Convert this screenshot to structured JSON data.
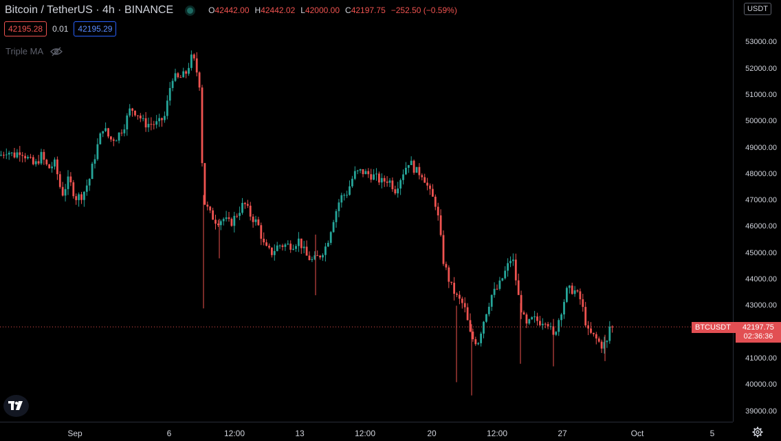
{
  "header": {
    "symbol_title": "Bitcoin / TetherUS · 4h · BINANCE",
    "ohlc": {
      "o_label": "O",
      "o_value": "42442.00",
      "h_label": "H",
      "h_value": "42442.02",
      "l_label": "L",
      "l_value": "42000.00",
      "c_label": "C",
      "c_value": "42197.75",
      "change": "−252.50 (−0.59%)"
    }
  },
  "quote": {
    "bid": "42195.28",
    "spread": "0.01",
    "ask": "42195.29"
  },
  "indicator": {
    "name": "Triple MA",
    "icon": "eye-crossed-icon"
  },
  "currency": "USDT",
  "last_price_label": {
    "symbol": "BTCUSDT",
    "price": "42197.75",
    "countdown": "02:36:36"
  },
  "colors": {
    "up": "#26a69a",
    "down": "#ef5350",
    "background": "#000000",
    "label": "#e24f53"
  },
  "chart_data": {
    "type": "candlestick",
    "price_axis": [
      "53000.00",
      "52000.00",
      "51000.00",
      "50000.00",
      "49000.00",
      "48000.00",
      "47000.00",
      "46000.00",
      "45000.00",
      "44000.00",
      "43000.00",
      "42000.00",
      "41000.00",
      "40000.00",
      "39000.00"
    ],
    "time_axis": [
      "Sep",
      "6",
      "12:00",
      "13",
      "12:00",
      "20",
      "12:00",
      "27",
      "Oct",
      "5"
    ],
    "last_price": 42197.75,
    "ylim": [
      38600,
      54600
    ],
    "anchors": [
      [
        0,
        48700
      ],
      [
        10,
        48900
      ],
      [
        20,
        48700
      ],
      [
        30,
        48900
      ],
      [
        40,
        48600
      ],
      [
        50,
        48300
      ],
      [
        60,
        48700
      ],
      [
        70,
        48200
      ],
      [
        80,
        48400
      ],
      [
        90,
        47200
      ],
      [
        100,
        47800
      ],
      [
        110,
        47100
      ],
      [
        120,
        47200
      ],
      [
        130,
        47800
      ],
      [
        140,
        48900
      ],
      [
        150,
        49800
      ],
      [
        160,
        49300
      ],
      [
        170,
        49400
      ],
      [
        180,
        49800
      ],
      [
        190,
        50500
      ],
      [
        200,
        50300
      ],
      [
        210,
        49900
      ],
      [
        220,
        49900
      ],
      [
        230,
        49900
      ],
      [
        240,
        50200
      ],
      [
        250,
        51700
      ],
      [
        260,
        51600
      ],
      [
        270,
        51800
      ],
      [
        280,
        52500
      ],
      [
        290,
        51500
      ],
      [
        296,
        47000
      ],
      [
        305,
        46500
      ],
      [
        315,
        46200
      ],
      [
        325,
        46300
      ],
      [
        335,
        46100
      ],
      [
        345,
        46500
      ],
      [
        355,
        46900
      ],
      [
        365,
        46400
      ],
      [
        375,
        46100
      ],
      [
        385,
        45200
      ],
      [
        395,
        45000
      ],
      [
        405,
        45300
      ],
      [
        415,
        45300
      ],
      [
        425,
        45300
      ],
      [
        435,
        45500
      ],
      [
        445,
        44900
      ],
      [
        455,
        44700
      ],
      [
        465,
        44900
      ],
      [
        475,
        45300
      ],
      [
        485,
        46300
      ],
      [
        495,
        47100
      ],
      [
        505,
        47300
      ],
      [
        515,
        48000
      ],
      [
        525,
        48100
      ],
      [
        535,
        48000
      ],
      [
        545,
        47900
      ],
      [
        555,
        47700
      ],
      [
        565,
        47800
      ],
      [
        575,
        47400
      ],
      [
        585,
        48000
      ],
      [
        595,
        48500
      ],
      [
        605,
        48100
      ],
      [
        615,
        48000
      ],
      [
        625,
        47300
      ],
      [
        635,
        46800
      ],
      [
        645,
        44700
      ],
      [
        655,
        43800
      ],
      [
        665,
        43300
      ],
      [
        675,
        43000
      ],
      [
        685,
        41800
      ],
      [
        695,
        41600
      ],
      [
        705,
        42600
      ],
      [
        715,
        43400
      ],
      [
        725,
        43700
      ],
      [
        735,
        44300
      ],
      [
        745,
        44900
      ],
      [
        755,
        43200
      ],
      [
        765,
        42200
      ],
      [
        775,
        42500
      ],
      [
        785,
        42400
      ],
      [
        795,
        42500
      ],
      [
        805,
        41800
      ],
      [
        815,
        42700
      ],
      [
        825,
        43600
      ],
      [
        835,
        43600
      ],
      [
        845,
        43200
      ],
      [
        855,
        42000
      ],
      [
        865,
        41800
      ],
      [
        875,
        41500
      ],
      [
        883,
        41600
      ],
      [
        888,
        42400
      ],
      [
        892,
        42198
      ]
    ]
  }
}
